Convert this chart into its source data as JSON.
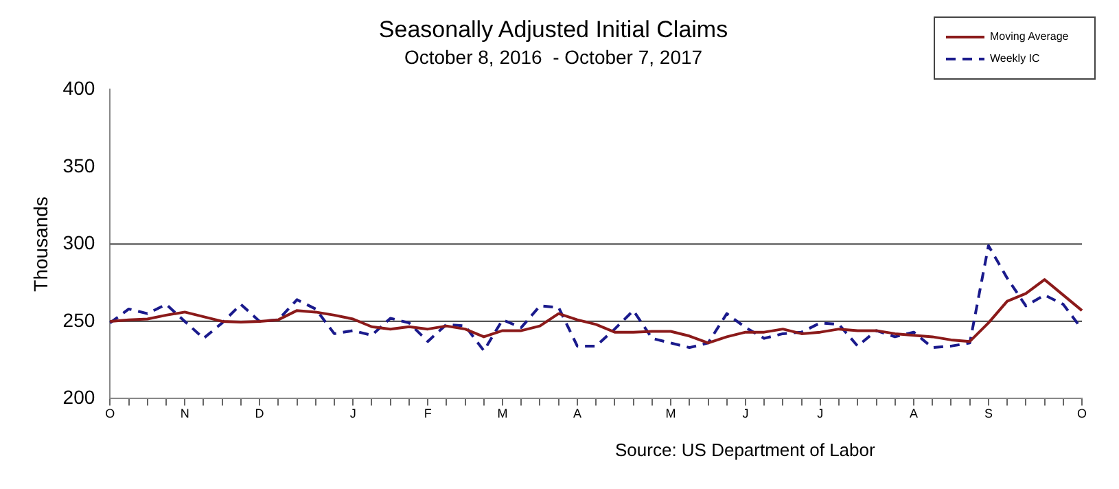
{
  "chart_data": {
    "type": "line",
    "title": "Seasonally Adjusted Initial Claims",
    "subtitle": "October 8, 2016  - October 7, 2017",
    "ylabel": "Thousands",
    "categories": [
      "O",
      null,
      null,
      null,
      "N",
      null,
      null,
      null,
      "D",
      null,
      null,
      null,
      null,
      "J",
      null,
      null,
      null,
      "F",
      null,
      null,
      null,
      "M",
      null,
      null,
      null,
      "A",
      null,
      null,
      null,
      null,
      "M",
      null,
      null,
      null,
      "J",
      null,
      null,
      null,
      "J",
      null,
      null,
      null,
      null,
      "A",
      null,
      null,
      null,
      "S",
      null,
      null,
      null,
      null,
      "O"
    ],
    "series": [
      {
        "name": "Moving Average",
        "color": "#8b1a1a",
        "line_style": "solid",
        "values": [
          250,
          251,
          251.5,
          254,
          256,
          253,
          250,
          249.5,
          250,
          251,
          257,
          256,
          254,
          251.5,
          246.5,
          245,
          246.5,
          245,
          247,
          245,
          240,
          244,
          244,
          247,
          255,
          251,
          248,
          243,
          243,
          243.5,
          243.5,
          240.5,
          236,
          240,
          243,
          243,
          245,
          242,
          243,
          245,
          244,
          244,
          242,
          241,
          240,
          238,
          237,
          249,
          263,
          268,
          277,
          267,
          257
        ]
      },
      {
        "name": "Weekly IC",
        "color": "#1a1a8c",
        "line_style": "dashed",
        "values": [
          249,
          258,
          255,
          261,
          250,
          239,
          249,
          261,
          250,
          251,
          264,
          258,
          242,
          244,
          241,
          252,
          249,
          237,
          248,
          247,
          231,
          251,
          246,
          260,
          259,
          234,
          234,
          245,
          257,
          239,
          236,
          233,
          236,
          255,
          246,
          239,
          242,
          243,
          249,
          248,
          234,
          244,
          240,
          243,
          233,
          234,
          236,
          299,
          278,
          260,
          267,
          261,
          245
        ]
      }
    ],
    "ylim": [
      200,
      400
    ],
    "yticks": [
      200,
      250,
      300,
      350,
      400
    ],
    "marker": "none",
    "legend": "top right",
    "ref_lines": [
      {
        "axis": "y",
        "value": 250
      },
      {
        "axis": "y",
        "value": 300
      }
    ],
    "annotations": [
      "Source: US Department of Labor"
    ]
  }
}
